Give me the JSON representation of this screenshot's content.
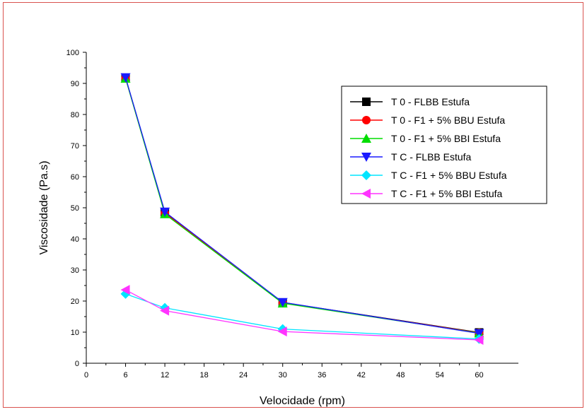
{
  "chart_data": {
    "type": "line",
    "title": "",
    "xlabel": "Velocidade (rpm)",
    "ylabel": "Viscosidade (Pa.s)",
    "xlim": [
      0,
      66
    ],
    "ylim": [
      0,
      100
    ],
    "x_ticks": [
      "0",
      "6",
      "12",
      "18",
      "24",
      "30",
      "36",
      "42",
      "48",
      "54",
      "60"
    ],
    "y_ticks": [
      "0",
      "10",
      "20",
      "30",
      "40",
      "50",
      "60",
      "70",
      "80",
      "90",
      "100"
    ],
    "x": [
      6,
      12,
      30,
      60
    ],
    "grid": false,
    "legend_position": "top-right",
    "series": [
      {
        "name": "T 0 - FLBB Estufa",
        "color": "#000000",
        "marker": "square",
        "values": [
          91.8,
          48.5,
          19.5,
          9.9
        ]
      },
      {
        "name": "T 0 - F1 + 5% BBU Estufa",
        "color": "#ff0000",
        "marker": "circle",
        "values": [
          91.7,
          48.3,
          19.4,
          9.8
        ]
      },
      {
        "name": "T 0 - F1 + 5% BBI Estufa",
        "color": "#00dd00",
        "marker": "triangle-up",
        "values": [
          91.6,
          48.0,
          19.3,
          9.7
        ]
      },
      {
        "name": "T C - FLBB Estufa",
        "color": "#1a1aff",
        "marker": "triangle-down",
        "values": [
          91.9,
          48.7,
          19.6,
          9.6
        ]
      },
      {
        "name": "T C - F1 + 5% BBU Estufa",
        "color": "#00e5ff",
        "marker": "diamond",
        "values": [
          22.3,
          17.8,
          11.0,
          7.8
        ]
      },
      {
        "name": "T C - F1 + 5% BBI Estufa",
        "color": "#ff33ff",
        "marker": "triangle-left",
        "values": [
          23.6,
          16.9,
          10.2,
          7.5
        ]
      }
    ]
  }
}
